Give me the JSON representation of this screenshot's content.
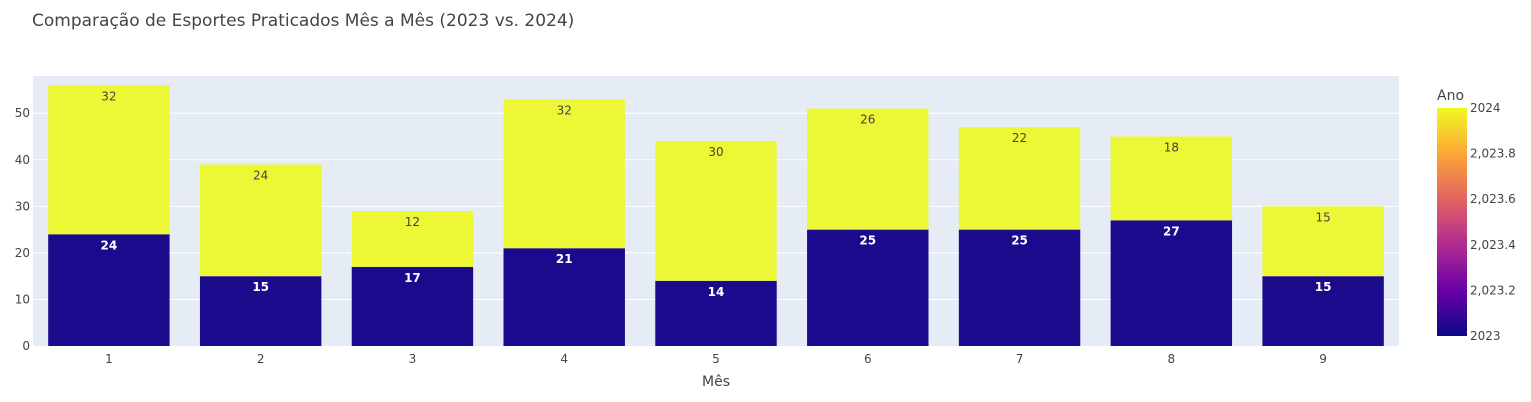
{
  "chart_data": {
    "type": "bar",
    "title": "Comparação de Esportes Praticados Mês a Mês (2023 vs. 2024)",
    "xlabel": "Mês",
    "ylabel": "",
    "categories": [
      "1",
      "2",
      "3",
      "4",
      "5",
      "6",
      "7",
      "8",
      "9"
    ],
    "barmode": "stack",
    "ylim": [
      0,
      58
    ],
    "yticks": [
      0,
      10,
      20,
      30,
      40,
      50
    ],
    "grid": true,
    "series": [
      {
        "name": "2023",
        "color": "#1c0a8c",
        "values": [
          24,
          15,
          17,
          21,
          14,
          25,
          25,
          27,
          15
        ]
      },
      {
        "name": "2024",
        "color": "#ecf735",
        "values": [
          32,
          24,
          12,
          32,
          30,
          26,
          22,
          18,
          15
        ]
      }
    ],
    "colorbar": {
      "title": "Ano",
      "tick_labels": [
        "2024",
        "2,023.8",
        "2,023.6",
        "2,023.4",
        "2,023.2",
        "2023"
      ],
      "colors": [
        "#f0f921",
        "#fca636",
        "#e16462",
        "#b12a90",
        "#6a00a8",
        "#0d0887"
      ]
    }
  }
}
